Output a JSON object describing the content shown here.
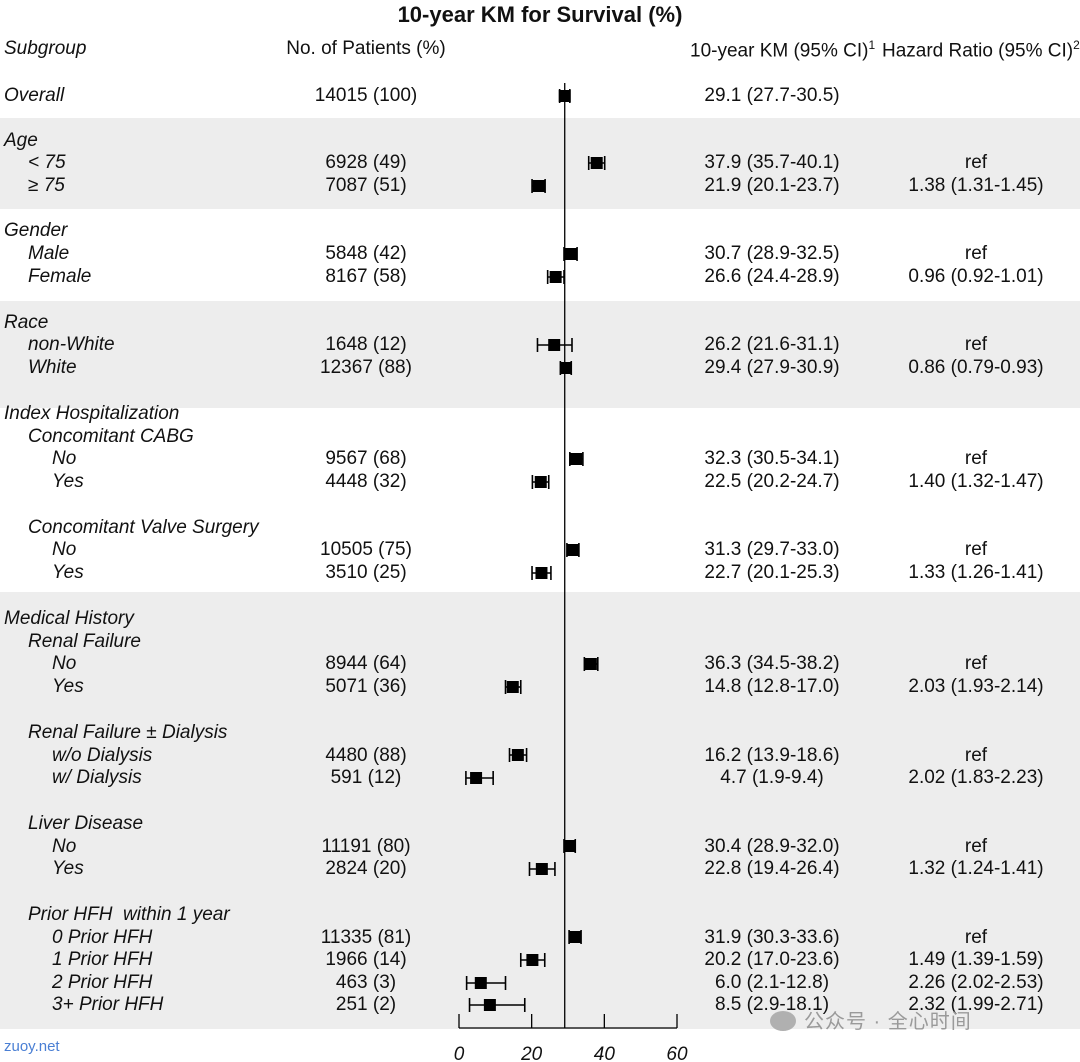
{
  "chart_data": {
    "type": "forest",
    "title": "10-year KM for Survival (%)",
    "headers": {
      "subgroup": "Subgroup",
      "patients": "No. of Patients (%)",
      "km": "10-year KM (95% CI)",
      "km_sup": "1",
      "hr": "Hazard Ratio (95% CI)",
      "hr_sup": "2"
    },
    "xlim": [
      0,
      60
    ],
    "xticks": [
      0,
      20,
      40,
      60
    ],
    "reference_line": 29.1,
    "rows": [
      {
        "label": "Overall",
        "indent": 0,
        "patients": "14015 (100)",
        "km": "29.1 (27.7-30.5)",
        "hr": "",
        "est": 29.1,
        "lo": 27.7,
        "hi": 30.5
      },
      {
        "label": "Age",
        "indent": 0
      },
      {
        "label": "< 75",
        "indent": 1,
        "patients": "6928 (49)",
        "km": "37.9 (35.7-40.1)",
        "hr": "ref",
        "est": 37.9,
        "lo": 35.7,
        "hi": 40.1
      },
      {
        "label": "≥ 75",
        "indent": 1,
        "patients": "7087 (51)",
        "km": "21.9 (20.1-23.7)",
        "hr": "1.38 (1.31-1.45)",
        "est": 21.9,
        "lo": 20.1,
        "hi": 23.7
      },
      {
        "label": "Gender",
        "indent": 0
      },
      {
        "label": "Male",
        "indent": 1,
        "patients": "5848 (42)",
        "km": "30.7 (28.9-32.5)",
        "hr": "ref",
        "est": 30.7,
        "lo": 28.9,
        "hi": 32.5
      },
      {
        "label": "Female",
        "indent": 1,
        "patients": "8167 (58)",
        "km": "26.6 (24.4-28.9)",
        "hr": "0.96 (0.92-1.01)",
        "est": 26.6,
        "lo": 24.4,
        "hi": 28.9
      },
      {
        "label": "Race",
        "indent": 0
      },
      {
        "label": "non-White",
        "indent": 1,
        "patients": "1648 (12)",
        "km": "26.2 (21.6-31.1)",
        "hr": "ref",
        "est": 26.2,
        "lo": 21.6,
        "hi": 31.1
      },
      {
        "label": "White",
        "indent": 1,
        "patients": "12367 (88)",
        "km": "29.4 (27.9-30.9)",
        "hr": "0.86 (0.79-0.93)",
        "est": 29.4,
        "lo": 27.9,
        "hi": 30.9
      },
      {
        "label": "Index Hospitalization",
        "indent": 0
      },
      {
        "label": "Concomitant CABG",
        "indent": 1
      },
      {
        "label": "No",
        "indent": 2,
        "patients": "9567 (68)",
        "km": "32.3 (30.5-34.1)",
        "hr": "ref",
        "est": 32.3,
        "lo": 30.5,
        "hi": 34.1
      },
      {
        "label": "Yes",
        "indent": 2,
        "patients": "4448 (32)",
        "km": "22.5 (20.2-24.7)",
        "hr": "1.40 (1.32-1.47)",
        "est": 22.5,
        "lo": 20.2,
        "hi": 24.7
      },
      {
        "label": "Concomitant Valve Surgery",
        "indent": 1
      },
      {
        "label": "No",
        "indent": 2,
        "patients": "10505 (75)",
        "km": "31.3 (29.7-33.0)",
        "hr": "ref",
        "est": 31.3,
        "lo": 29.7,
        "hi": 33.0
      },
      {
        "label": "Yes",
        "indent": 2,
        "patients": "3510 (25)",
        "km": "22.7 (20.1-25.3)",
        "hr": "1.33 (1.26-1.41)",
        "est": 22.7,
        "lo": 20.1,
        "hi": 25.3
      },
      {
        "label": "Medical History",
        "indent": 0
      },
      {
        "label": "Renal Failure",
        "indent": 1
      },
      {
        "label": "No",
        "indent": 2,
        "patients": "8944 (64)",
        "km": "36.3 (34.5-38.2)",
        "hr": "ref",
        "est": 36.3,
        "lo": 34.5,
        "hi": 38.2
      },
      {
        "label": "Yes",
        "indent": 2,
        "patients": "5071 (36)",
        "km": "14.8 (12.8-17.0)",
        "hr": "2.03 (1.93-2.14)",
        "est": 14.8,
        "lo": 12.8,
        "hi": 17.0
      },
      {
        "label": "Renal Failure ± Dialysis",
        "indent": 1
      },
      {
        "label": "w/o Dialysis",
        "indent": 2,
        "patients": "4480 (88)",
        "km": "16.2 (13.9-18.6)",
        "hr": "ref",
        "est": 16.2,
        "lo": 13.9,
        "hi": 18.6
      },
      {
        "label": "w/ Dialysis",
        "indent": 2,
        "patients": "591 (12)",
        "km": "4.7 (1.9-9.4)",
        "hr": "2.02 (1.83-2.23)",
        "est": 4.7,
        "lo": 1.9,
        "hi": 9.4
      },
      {
        "label": "Liver Disease",
        "indent": 1
      },
      {
        "label": "No",
        "indent": 2,
        "patients": "11191 (80)",
        "km": "30.4 (28.9-32.0)",
        "hr": "ref",
        "est": 30.4,
        "lo": 28.9,
        "hi": 32.0
      },
      {
        "label": "Yes",
        "indent": 2,
        "patients": "2824 (20)",
        "km": "22.8 (19.4-26.4)",
        "hr": "1.32 (1.24-1.41)",
        "est": 22.8,
        "lo": 19.4,
        "hi": 26.4
      },
      {
        "label": "Prior HFH  within 1 year",
        "indent": 1
      },
      {
        "label": "0 Prior HFH",
        "indent": 2,
        "patients": "11335 (81)",
        "km": "31.9 (30.3-33.6)",
        "hr": "ref",
        "est": 31.9,
        "lo": 30.3,
        "hi": 33.6
      },
      {
        "label": "1 Prior HFH",
        "indent": 2,
        "patients": "1966 (14)",
        "km": "20.2 (17.0-23.6)",
        "hr": "1.49 (1.39-1.59)",
        "est": 20.2,
        "lo": 17.0,
        "hi": 23.6
      },
      {
        "label": "2 Prior HFH",
        "indent": 2,
        "patients": "463 (3)",
        "km": "6.0 (2.1-12.8)",
        "hr": "2.26 (2.02-2.53)",
        "est": 6.0,
        "lo": 2.1,
        "hi": 12.8
      },
      {
        "label": "3+ Prior HFH",
        "indent": 2,
        "patients": "251 (2)",
        "km": "8.5 (2.9-18.1)",
        "hr": "2.32 (1.99-2.71)",
        "est": 8.5,
        "lo": 2.9,
        "hi": 18.1
      }
    ]
  },
  "watermarks": {
    "left": "zuoy.net",
    "right": "公众号 · 全心时间"
  },
  "colors": {
    "band": "#ededed",
    "marks": "#000000"
  }
}
